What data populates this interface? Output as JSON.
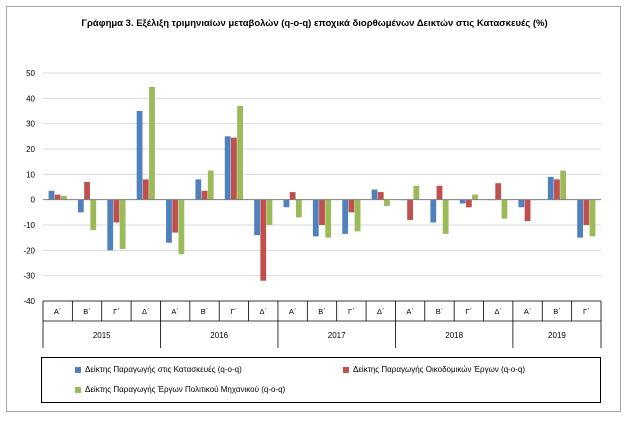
{
  "chart_data": {
    "type": "bar",
    "title": "Γράφημα 3. Εξέλιξη τριμηνιαίων μεταβολών (q-o-q) εποχικά διορθωμένων Δεικτών  στις Κατασκευές (%)",
    "xlabel": "",
    "ylabel": "",
    "ylim": [
      -40,
      50
    ],
    "yticks": [
      "50",
      "40",
      "30",
      "20",
      "10",
      "0",
      "-10",
      "-20",
      "-30",
      "-40"
    ],
    "grid": true,
    "legend_position": "bottom",
    "quarters": [
      "Α΄",
      "Β΄",
      "Γ΄",
      "Δ΄",
      "Α΄",
      "Β΄",
      "Γ΄",
      "Δ΄",
      "Α΄",
      "Β΄",
      "Γ΄",
      "Δ΄",
      "Α΄",
      "Β΄",
      "Γ΄",
      "Δ΄",
      "Α΄",
      "Β΄",
      "Γ΄"
    ],
    "years": [
      {
        "label": "2015",
        "quarters": 4
      },
      {
        "label": "2016",
        "quarters": 4
      },
      {
        "label": "2017",
        "quarters": 4
      },
      {
        "label": "2018",
        "quarters": 4
      },
      {
        "label": "2019",
        "quarters": 3
      }
    ],
    "series": [
      {
        "name": "Δείκτης Παραγωγής στις Κατασκευές (q-o-q)",
        "color": "#4f81bd",
        "values": [
          3.5,
          -5,
          -20,
          35,
          -17,
          8,
          25,
          -14,
          -3,
          -14.5,
          -13.5,
          4,
          0,
          -9,
          -1.5,
          0,
          -3,
          9,
          -15
        ]
      },
      {
        "name": "Δείκτης Παραγωγής Οικοδομικών Έργων (q-o-q)",
        "color": "#c0504d",
        "values": [
          2,
          7,
          -9,
          8,
          -13,
          3.5,
          24.5,
          -32,
          3,
          -10,
          -5,
          3,
          -8,
          5.5,
          -3,
          6.5,
          -8.5,
          8,
          -10
        ]
      },
      {
        "name": "Δείκτης Παραγωγής Έργων Πολιτικού Μηχανικού (q-o-q)",
        "color": "#9bbb59",
        "values": [
          1.5,
          -12,
          -19.5,
          44.5,
          -21.5,
          11.5,
          37,
          -10,
          -7,
          -15,
          -12.5,
          -2.5,
          5.5,
          -13.5,
          2,
          -7.5,
          0,
          11.5,
          -14.5
        ]
      }
    ]
  }
}
